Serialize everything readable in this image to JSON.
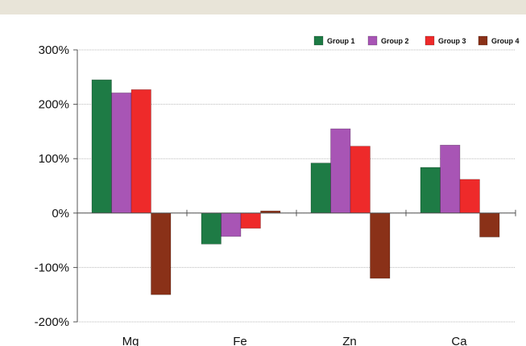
{
  "chart_data": {
    "type": "bar",
    "categories": [
      "Mg",
      "Fe",
      "Zn",
      "Ca"
    ],
    "series": [
      {
        "name": "Group 1",
        "color": "#1e7b45",
        "values": [
          245,
          -57,
          92,
          84
        ]
      },
      {
        "name": "Group 2",
        "color": "#a855b5",
        "values": [
          221,
          -43,
          155,
          125
        ]
      },
      {
        "name": "Group 3",
        "color": "#ee2a2a",
        "values": [
          227,
          -28,
          123,
          62
        ]
      },
      {
        "name": "Group 4",
        "color": "#8a3118",
        "values": [
          -150,
          4,
          -120,
          -44
        ]
      }
    ],
    "y_ticks": [
      "-200%",
      "-100%",
      "0%",
      "100%",
      "200%",
      "300%"
    ],
    "ylim": [
      -200,
      300
    ],
    "grid": true,
    "legend_position": "top-right",
    "title": "",
    "xlabel": "",
    "ylabel": ""
  }
}
